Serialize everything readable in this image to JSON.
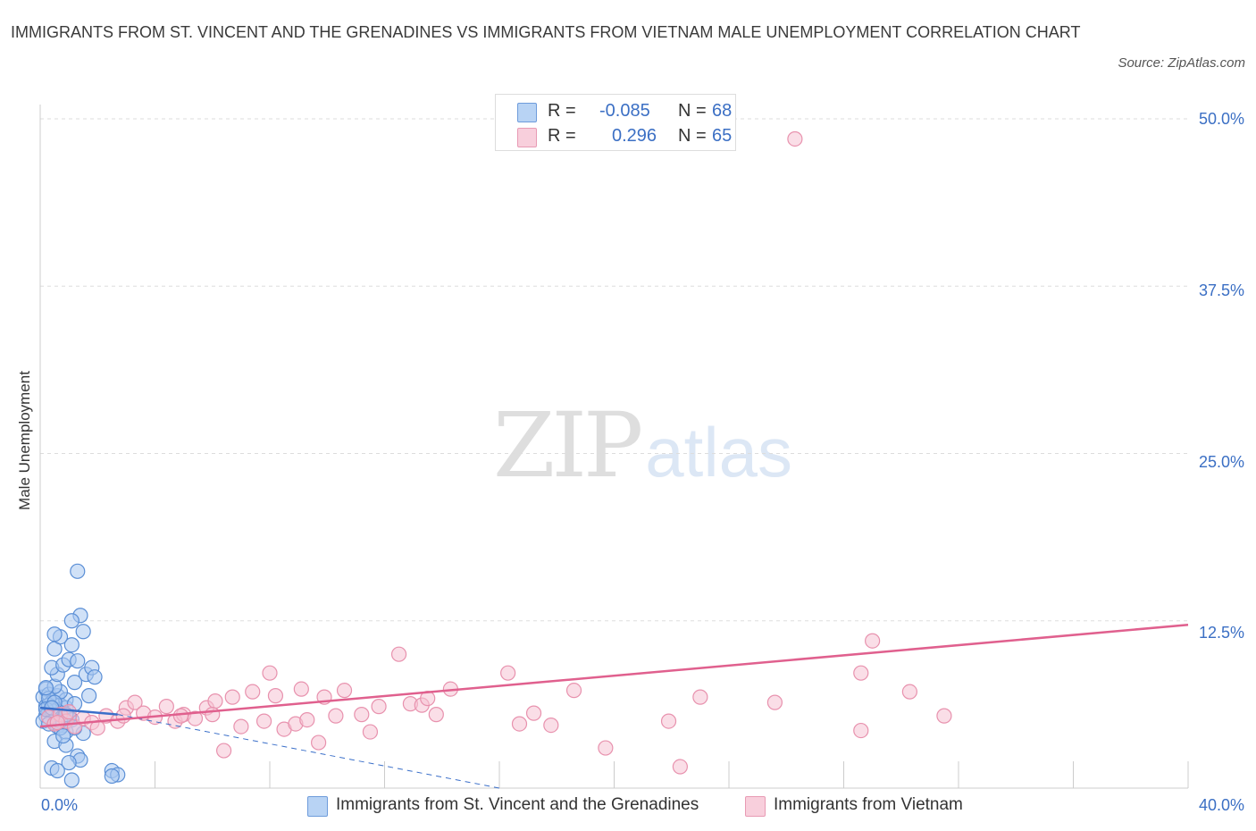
{
  "title": "IMMIGRANTS FROM ST. VINCENT AND THE GRENADINES VS IMMIGRANTS FROM VIETNAM MALE UNEMPLOYMENT CORRELATION CHART",
  "source": "Source: ZipAtlas.com",
  "watermark": {
    "zip": "ZIP",
    "atlas": "atlas"
  },
  "legend_top": {
    "rows": [
      {
        "r_label": "R =",
        "r_value": "-0.085",
        "n_label": "N =",
        "n_value": "68"
      },
      {
        "r_label": "R =",
        "r_value": "0.296",
        "n_label": "N =",
        "n_value": "65"
      }
    ]
  },
  "colors": {
    "blue_fill": "#a9c8f0",
    "blue_stroke": "#5b8fd6",
    "blue_line": "#3a6fc9",
    "pink_fill": "#f6c3d3",
    "pink_stroke": "#e892ae",
    "pink_line": "#e0608e",
    "tick_text": "#3b6fc4",
    "grid": "#dddddd"
  },
  "chart_data": {
    "type": "scatter",
    "title": "IMMIGRANTS FROM ST. VINCENT AND THE GRENADINES VS IMMIGRANTS FROM VIETNAM MALE UNEMPLOYMENT CORRELATION CHART",
    "xlabel": "",
    "ylabel": "Male Unemployment",
    "xlim": [
      0,
      40
    ],
    "ylim": [
      0,
      50
    ],
    "y_ticks": [
      "50.0%",
      "37.5%",
      "25.0%",
      "12.5%"
    ],
    "y_tick_values": [
      50,
      37.5,
      25,
      12.5
    ],
    "x_ticks": [
      "0.0%",
      "40.0%"
    ],
    "x_tick_values": [
      0,
      40
    ],
    "grid": "horizontal dashed",
    "legend": "bottom",
    "series": [
      {
        "name": "Immigrants from St. Vincent and the Grenadines",
        "color": "blue",
        "r": -0.085,
        "n": 68,
        "trend": {
          "x": [
            0,
            2.7
          ],
          "y": [
            6.0,
            5.5
          ]
        },
        "trend_extended": {
          "x": [
            2.7,
            16
          ],
          "y": [
            5.5,
            0
          ]
        },
        "points": [
          [
            0.1,
            6.8
          ],
          [
            0.2,
            7.4
          ],
          [
            0.2,
            6.1
          ],
          [
            0.3,
            5.7
          ],
          [
            0.3,
            7.0
          ],
          [
            0.4,
            6.4
          ],
          [
            0.5,
            5.5
          ],
          [
            0.6,
            6.9
          ],
          [
            0.4,
            5.9
          ],
          [
            0.7,
            6.2
          ],
          [
            0.8,
            5.6
          ],
          [
            0.9,
            6.0
          ],
          [
            0.5,
            4.9
          ],
          [
            0.6,
            5.2
          ],
          [
            0.8,
            4.7
          ],
          [
            1.0,
            5.3
          ],
          [
            0.9,
            6.6
          ],
          [
            1.2,
            6.3
          ],
          [
            0.3,
            6.2
          ],
          [
            0.2,
            5.4
          ],
          [
            0.1,
            5.0
          ],
          [
            0.4,
            5.8
          ],
          [
            0.6,
            4.6
          ],
          [
            0.7,
            7.2
          ],
          [
            1.1,
            5.1
          ],
          [
            0.5,
            7.6
          ],
          [
            0.6,
            8.5
          ],
          [
            0.4,
            9.0
          ],
          [
            0.8,
            9.2
          ],
          [
            1.0,
            9.6
          ],
          [
            0.5,
            10.4
          ],
          [
            1.1,
            10.7
          ],
          [
            0.7,
            11.3
          ],
          [
            0.5,
            11.5
          ],
          [
            1.5,
            11.7
          ],
          [
            1.4,
            12.9
          ],
          [
            1.1,
            12.5
          ],
          [
            1.3,
            16.2
          ],
          [
            1.3,
            9.5
          ],
          [
            1.6,
            8.5
          ],
          [
            1.8,
            9.0
          ],
          [
            1.9,
            8.3
          ],
          [
            1.7,
            6.9
          ],
          [
            0.9,
            4.2
          ],
          [
            1.5,
            4.1
          ],
          [
            0.5,
            3.5
          ],
          [
            0.7,
            4.5
          ],
          [
            0.9,
            3.2
          ],
          [
            1.3,
            2.4
          ],
          [
            1.4,
            2.1
          ],
          [
            1.0,
            1.9
          ],
          [
            0.4,
            1.5
          ],
          [
            0.6,
            1.3
          ],
          [
            1.1,
            0.6
          ],
          [
            2.5,
            1.3
          ],
          [
            2.7,
            1.0
          ],
          [
            2.5,
            0.9
          ],
          [
            0.8,
            3.9
          ],
          [
            1.2,
            7.9
          ],
          [
            0.3,
            6.7
          ],
          [
            0.2,
            5.9
          ],
          [
            0.5,
            6.4
          ],
          [
            0.7,
            5.0
          ],
          [
            0.9,
            5.5
          ],
          [
            0.2,
            7.5
          ],
          [
            0.3,
            4.8
          ],
          [
            1.2,
            4.5
          ],
          [
            0.4,
            6.0
          ]
        ]
      },
      {
        "name": "Immigrants from Vietnam",
        "color": "pink",
        "r": 0.296,
        "n": 65,
        "trend": {
          "x": [
            0,
            40
          ],
          "y": [
            4.6,
            12.2
          ]
        },
        "points": [
          [
            0.3,
            5.3
          ],
          [
            0.5,
            4.8
          ],
          [
            0.7,
            5.5
          ],
          [
            0.9,
            5.0
          ],
          [
            1.0,
            5.7
          ],
          [
            1.2,
            4.6
          ],
          [
            1.5,
            5.2
          ],
          [
            1.8,
            4.9
          ],
          [
            2.0,
            4.5
          ],
          [
            2.3,
            5.4
          ],
          [
            2.7,
            5.0
          ],
          [
            3.0,
            6.0
          ],
          [
            3.3,
            6.4
          ],
          [
            3.6,
            5.6
          ],
          [
            4.0,
            5.3
          ],
          [
            4.4,
            6.1
          ],
          [
            4.7,
            5.0
          ],
          [
            5.0,
            5.5
          ],
          [
            5.4,
            5.2
          ],
          [
            5.8,
            6.0
          ],
          [
            6.1,
            6.5
          ],
          [
            6.4,
            2.8
          ],
          [
            6.7,
            6.8
          ],
          [
            7.0,
            4.6
          ],
          [
            7.4,
            7.2
          ],
          [
            7.8,
            5.0
          ],
          [
            8.0,
            8.6
          ],
          [
            8.2,
            6.9
          ],
          [
            8.5,
            4.4
          ],
          [
            8.9,
            4.8
          ],
          [
            9.1,
            7.4
          ],
          [
            9.3,
            5.1
          ],
          [
            9.7,
            3.4
          ],
          [
            9.9,
            6.8
          ],
          [
            10.3,
            5.4
          ],
          [
            10.6,
            7.3
          ],
          [
            11.2,
            5.5
          ],
          [
            11.5,
            4.2
          ],
          [
            11.8,
            6.1
          ],
          [
            12.5,
            10.0
          ],
          [
            12.9,
            6.3
          ],
          [
            13.3,
            6.2
          ],
          [
            13.5,
            6.7
          ],
          [
            13.8,
            5.5
          ],
          [
            14.3,
            7.4
          ],
          [
            16.3,
            8.6
          ],
          [
            16.7,
            4.8
          ],
          [
            17.2,
            5.6
          ],
          [
            17.8,
            4.7
          ],
          [
            18.6,
            7.3
          ],
          [
            19.7,
            3.0
          ],
          [
            21.9,
            5.0
          ],
          [
            22.3,
            1.6
          ],
          [
            23.0,
            6.8
          ],
          [
            26.3,
            48.5
          ],
          [
            25.6,
            6.4
          ],
          [
            28.6,
            8.6
          ],
          [
            28.6,
            4.3
          ],
          [
            29.0,
            11.0
          ],
          [
            30.3,
            7.2
          ],
          [
            31.5,
            5.4
          ],
          [
            4.9,
            5.4
          ],
          [
            6.0,
            5.5
          ],
          [
            2.9,
            5.4
          ],
          [
            0.6,
            4.9
          ]
        ]
      }
    ]
  },
  "legend_bottom": [
    {
      "label": "Immigrants from St. Vincent and the Grenadines"
    },
    {
      "label": "Immigrants from Vietnam"
    }
  ]
}
